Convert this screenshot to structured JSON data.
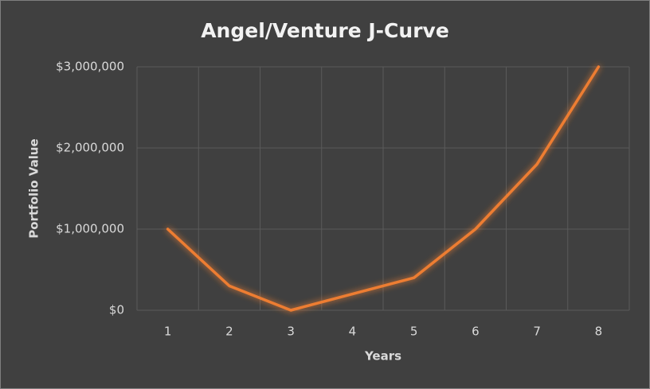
{
  "chart_data": {
    "type": "line",
    "title": "Angel/Venture J-Curve",
    "x_label": "Years",
    "y_label": "Portfolio Value",
    "categories": [
      "1",
      "2",
      "3",
      "4",
      "5",
      "6",
      "7",
      "8"
    ],
    "values": [
      1000000,
      300000,
      0,
      200000,
      400000,
      1000000,
      1800000,
      3000000
    ],
    "color": "#ed7d31",
    "ylim": [
      0,
      3000000
    ],
    "yticks": [
      {
        "value": 0,
        "label": "$0"
      },
      {
        "value": 1000000,
        "label": "$1,000,000"
      },
      {
        "value": 2000000,
        "label": "$2,000,000"
      },
      {
        "value": 3000000,
        "label": "$3,000,000"
      }
    ],
    "grid": true
  }
}
